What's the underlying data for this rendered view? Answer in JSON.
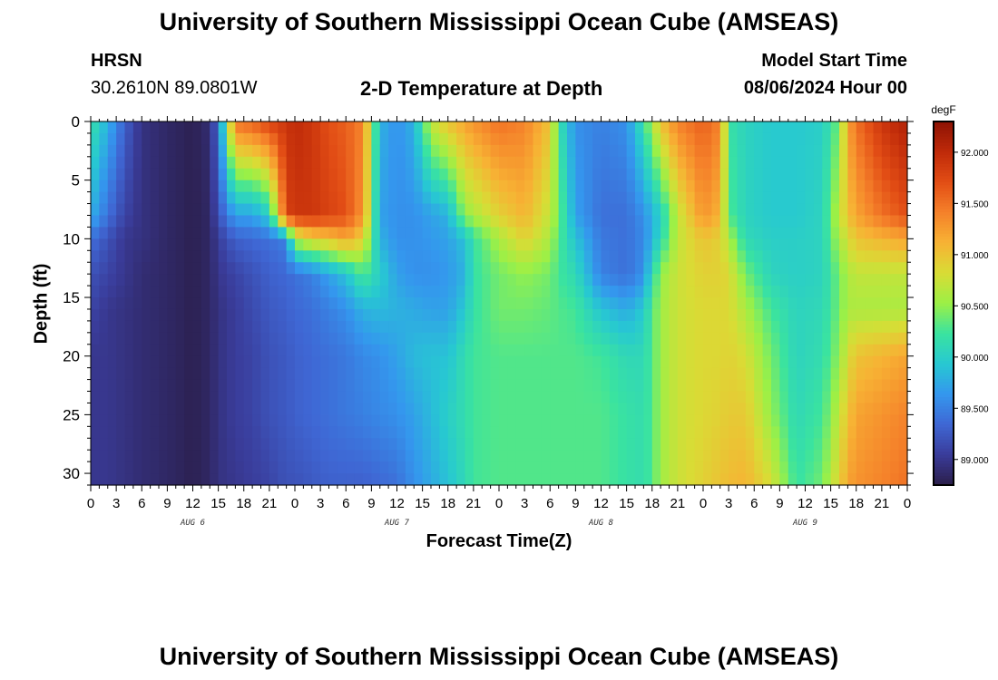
{
  "header": {
    "title": "University of Southern Mississippi Ocean Cube (AMSEAS)",
    "station": "HRSN",
    "location": "30.2610N  89.0801W",
    "plot_title": "2-D Temperature at Depth",
    "model_start_label": "Model Start Time",
    "model_start_value": "08/06/2024 Hour 00"
  },
  "footer": {
    "title": "University of Southern Mississippi Ocean Cube (AMSEAS)"
  },
  "chart_data": {
    "type": "heatmap",
    "title": "2-D Temperature at Depth",
    "xlabel": "Forecast Time(Z)",
    "ylabel": "Depth (ft)",
    "x_range_hours": [
      0,
      96
    ],
    "x_tick_step_hours": 3,
    "x_tick_labels": [
      "0",
      "3",
      "6",
      "9",
      "12",
      "15",
      "18",
      "21",
      "0",
      "3",
      "6",
      "9",
      "12",
      "15",
      "18",
      "21",
      "0",
      "3",
      "6",
      "9",
      "12",
      "15",
      "18",
      "21",
      "0",
      "3",
      "6",
      "9",
      "12",
      "15",
      "18",
      "21",
      "0"
    ],
    "day_labels": [
      {
        "hour": 12,
        "label": "AUG 6"
      },
      {
        "hour": 36,
        "label": "AUG 7"
      },
      {
        "hour": 60,
        "label": "AUG 8"
      },
      {
        "hour": 84,
        "label": "AUG 9"
      }
    ],
    "y_range_ft": [
      0,
      31
    ],
    "y_ticks": [
      0,
      5,
      10,
      15,
      20,
      25,
      30
    ],
    "colorbar": {
      "unit": "degF",
      "range": [
        88.75,
        92.3
      ],
      "ticks": [
        "89.000",
        "89.500",
        "90.000",
        "90.500",
        "91.000",
        "91.500",
        "92.000"
      ],
      "colors": [
        "#2b1e4a",
        "#3a3c9a",
        "#3f67d4",
        "#3497ee",
        "#27c8d2",
        "#3ae3a0",
        "#9cf046",
        "#d9dc35",
        "#f7b234",
        "#f5812a",
        "#e24d15",
        "#bf2a09",
        "#8c1204"
      ]
    },
    "hour_step": 1,
    "depth_step_ft": 1,
    "depth_profiles_ft": [
      0,
      8,
      10,
      13,
      16,
      20,
      25,
      31
    ],
    "time_profiles": [
      {
        "hour": 0,
        "values": [
          90.2,
          89.8,
          89.4,
          89.2,
          89.1,
          89.0,
          89.0,
          89.0
        ]
      },
      {
        "hour": 2,
        "values": [
          89.8,
          89.4,
          89.2,
          89.1,
          89.0,
          89.0,
          89.0,
          89.0
        ]
      },
      {
        "hour": 4,
        "values": [
          89.3,
          89.1,
          89.0,
          89.0,
          88.95,
          88.95,
          88.95,
          88.95
        ]
      },
      {
        "hour": 6,
        "values": [
          88.95,
          88.95,
          88.95,
          88.9,
          88.9,
          88.9,
          88.9,
          88.9
        ]
      },
      {
        "hour": 9,
        "values": [
          88.85,
          88.85,
          88.85,
          88.85,
          88.85,
          88.85,
          88.85,
          88.85
        ]
      },
      {
        "hour": 12,
        "values": [
          88.78,
          88.78,
          88.78,
          88.78,
          88.78,
          88.78,
          88.78,
          88.78
        ]
      },
      {
        "hour": 14,
        "values": [
          88.9,
          88.85,
          88.85,
          88.85,
          88.85,
          88.85,
          88.85,
          88.85
        ]
      },
      {
        "hour": 15,
        "values": [
          89.4,
          89.2,
          89.05,
          89.0,
          88.95,
          88.95,
          88.95,
          88.95
        ]
      },
      {
        "hour": 17,
        "values": [
          91.5,
          89.7,
          89.3,
          89.1,
          89.05,
          89.05,
          89.05,
          89.0
        ]
      },
      {
        "hour": 19,
        "values": [
          91.6,
          89.7,
          89.35,
          89.2,
          89.15,
          89.1,
          89.1,
          89.05
        ]
      },
      {
        "hour": 21,
        "values": [
          91.8,
          90.0,
          89.4,
          89.3,
          89.25,
          89.2,
          89.2,
          89.1
        ]
      },
      {
        "hour": 23,
        "values": [
          91.9,
          91.8,
          89.5,
          89.35,
          89.3,
          89.25,
          89.25,
          89.2
        ]
      },
      {
        "hour": 24,
        "values": [
          92.0,
          91.9,
          90.6,
          89.4,
          89.35,
          89.3,
          89.3,
          89.2
        ]
      },
      {
        "hour": 26,
        "values": [
          91.9,
          91.9,
          90.9,
          89.5,
          89.4,
          89.35,
          89.35,
          89.25
        ]
      },
      {
        "hour": 28,
        "values": [
          91.7,
          91.8,
          91.0,
          89.7,
          89.5,
          89.4,
          89.4,
          89.3
        ]
      },
      {
        "hour": 30,
        "values": [
          91.6,
          91.7,
          91.2,
          89.9,
          89.6,
          89.45,
          89.45,
          89.3
        ]
      },
      {
        "hour": 32,
        "values": [
          91.4,
          91.3,
          90.9,
          90.3,
          89.8,
          89.55,
          89.5,
          89.3
        ]
      },
      {
        "hour": 34,
        "values": [
          89.8,
          89.7,
          89.8,
          90.0,
          89.85,
          89.6,
          89.55,
          89.35
        ]
      },
      {
        "hour": 36,
        "values": [
          89.6,
          89.6,
          89.6,
          89.7,
          89.8,
          89.7,
          89.6,
          89.4
        ]
      },
      {
        "hour": 38,
        "values": [
          89.8,
          89.6,
          89.6,
          89.6,
          89.75,
          89.85,
          89.7,
          89.6
        ]
      },
      {
        "hour": 40,
        "values": [
          90.7,
          89.7,
          89.65,
          89.6,
          89.7,
          89.9,
          89.85,
          89.75
        ]
      },
      {
        "hour": 42,
        "values": [
          91.0,
          89.8,
          89.7,
          89.65,
          89.7,
          89.9,
          90.0,
          89.9
        ]
      },
      {
        "hour": 44,
        "values": [
          91.2,
          90.5,
          89.9,
          89.8,
          89.95,
          90.15,
          90.15,
          90.1
        ]
      },
      {
        "hour": 45,
        "values": [
          91.3,
          90.6,
          90.2,
          90.2,
          90.2,
          90.25,
          90.25,
          90.25
        ]
      },
      {
        "hour": 48,
        "values": [
          91.5,
          90.9,
          90.6,
          90.4,
          90.4,
          90.3,
          90.3,
          90.3
        ]
      },
      {
        "hour": 51,
        "values": [
          91.4,
          91.1,
          90.9,
          90.5,
          90.4,
          90.3,
          90.3,
          90.3
        ]
      },
      {
        "hour": 54,
        "values": [
          91.0,
          90.7,
          90.6,
          90.4,
          90.35,
          90.3,
          90.3,
          90.3
        ]
      },
      {
        "hour": 55,
        "values": [
          90.2,
          90.4,
          90.3,
          90.25,
          90.3,
          90.3,
          90.3,
          90.3
        ]
      },
      {
        "hour": 57,
        "values": [
          89.6,
          89.7,
          89.9,
          90.1,
          90.25,
          90.3,
          90.3,
          90.3
        ]
      },
      {
        "hour": 60,
        "values": [
          89.5,
          89.4,
          89.45,
          89.5,
          89.9,
          90.25,
          90.3,
          90.3
        ]
      },
      {
        "hour": 63,
        "values": [
          89.6,
          89.4,
          89.4,
          89.4,
          89.75,
          90.1,
          90.2,
          90.2
        ]
      },
      {
        "hour": 65,
        "values": [
          90.2,
          89.6,
          89.55,
          89.6,
          89.95,
          90.1,
          90.15,
          90.15
        ]
      },
      {
        "hour": 66,
        "values": [
          90.6,
          89.8,
          89.8,
          90.1,
          90.3,
          90.3,
          90.3,
          90.3
        ]
      },
      {
        "hour": 67,
        "values": [
          91.0,
          90.0,
          90.1,
          90.5,
          90.55,
          90.55,
          90.55,
          90.55
        ]
      },
      {
        "hour": 69,
        "values": [
          91.4,
          90.7,
          90.7,
          90.75,
          90.75,
          90.75,
          90.75,
          90.75
        ]
      },
      {
        "hour": 72,
        "values": [
          91.6,
          91.3,
          91.0,
          90.9,
          90.85,
          90.85,
          90.85,
          90.9
        ]
      },
      {
        "hour": 74,
        "values": [
          91.4,
          91.1,
          90.9,
          90.9,
          90.85,
          90.85,
          90.9,
          91.0
        ]
      },
      {
        "hour": 75,
        "values": [
          90.2,
          90.3,
          90.6,
          90.85,
          90.85,
          90.9,
          90.95,
          91.05
        ]
      },
      {
        "hour": 77,
        "values": [
          90.05,
          90.05,
          90.1,
          90.4,
          90.6,
          90.8,
          90.95,
          91.1
        ]
      },
      {
        "hour": 80,
        "values": [
          89.95,
          89.95,
          90.0,
          90.05,
          90.25,
          90.4,
          90.5,
          90.8
        ]
      },
      {
        "hour": 83,
        "values": [
          89.95,
          89.95,
          90.0,
          90.0,
          90.05,
          90.05,
          90.1,
          90.2
        ]
      },
      {
        "hour": 86,
        "values": [
          90.0,
          90.05,
          90.05,
          90.05,
          90.1,
          90.15,
          90.25,
          90.4
        ]
      },
      {
        "hour": 88,
        "values": [
          90.4,
          90.7,
          90.6,
          90.4,
          90.4,
          90.5,
          90.7,
          90.9
        ]
      },
      {
        "hour": 89,
        "values": [
          91.2,
          91.0,
          90.8,
          90.6,
          90.6,
          90.8,
          91.0,
          91.2
        ]
      },
      {
        "hour": 90,
        "values": [
          91.5,
          91.2,
          91.0,
          90.7,
          90.6,
          91.0,
          91.2,
          91.3
        ]
      },
      {
        "hour": 93,
        "values": [
          91.9,
          91.5,
          91.1,
          90.7,
          90.6,
          91.1,
          91.3,
          91.4
        ]
      },
      {
        "hour": 96,
        "values": [
          92.1,
          91.7,
          91.2,
          90.7,
          90.6,
          91.2,
          91.4,
          91.5
        ]
      }
    ]
  }
}
